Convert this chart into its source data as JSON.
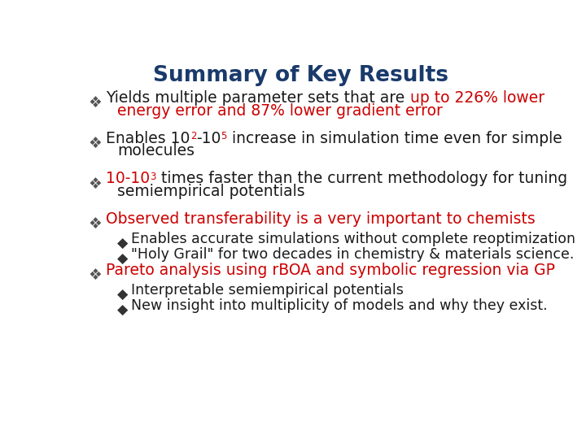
{
  "title": "Summary of Key Results",
  "title_color": "#1a3a6b",
  "title_fontsize": 19,
  "bg_color": "#ffffff",
  "bullet_color": "#555555",
  "highlight_color": "#cc0000",
  "normal_color": "#1a1a1a",
  "bullet_symbol": "❖",
  "sub_bullet_symbol": "◆",
  "bullet_fontsize": 13.5,
  "sub_bullet_fontsize": 12.5,
  "items": [
    {
      "type": "bullet",
      "lines": [
        [
          {
            "text": "Yields multiple parameter sets that are ",
            "color": "#1a1a1a",
            "super": false
          },
          {
            "text": "up to 226% lower",
            "color": "#cc0000",
            "super": false
          }
        ],
        [
          {
            "text": "energy error and 87% lower gradient error",
            "color": "#cc0000",
            "super": false
          }
        ]
      ]
    },
    {
      "type": "bullet",
      "lines": [
        [
          {
            "text": "Enables 10",
            "color": "#1a1a1a",
            "super": false
          },
          {
            "text": "2",
            "color": "#cc0000",
            "super": true
          },
          {
            "text": "-10",
            "color": "#1a1a1a",
            "super": false
          },
          {
            "text": "5",
            "color": "#cc0000",
            "super": true
          },
          {
            "text": " increase in simulation time even for simple",
            "color": "#1a1a1a",
            "super": false
          }
        ],
        [
          {
            "text": "molecules",
            "color": "#1a1a1a",
            "super": false
          }
        ]
      ]
    },
    {
      "type": "bullet",
      "lines": [
        [
          {
            "text": "10-10",
            "color": "#cc0000",
            "super": false
          },
          {
            "text": "3",
            "color": "#cc0000",
            "super": true
          },
          {
            "text": " times faster than the current methodology for tuning",
            "color": "#1a1a1a",
            "super": false
          }
        ],
        [
          {
            "text": "semiempirical potentials",
            "color": "#1a1a1a",
            "super": false
          }
        ]
      ]
    },
    {
      "type": "bullet",
      "lines": [
        [
          {
            "text": "Observed transferability is a very important to chemists",
            "color": "#cc0000",
            "super": false
          }
        ]
      ]
    },
    {
      "type": "sub_bullet",
      "lines": [
        [
          {
            "text": "Enables accurate simulations without complete reoptimization",
            "color": "#1a1a1a",
            "super": false
          }
        ]
      ]
    },
    {
      "type": "sub_bullet",
      "lines": [
        [
          {
            "text": "\"Holy Grail\" for two decades in chemistry & materials science.",
            "color": "#1a1a1a",
            "super": false
          }
        ]
      ]
    },
    {
      "type": "bullet",
      "lines": [
        [
          {
            "text": "Pareto analysis using rBOA and symbolic regression via GP",
            "color": "#cc0000",
            "super": false
          }
        ]
      ]
    },
    {
      "type": "sub_bullet",
      "lines": [
        [
          {
            "text": "Interpretable semiempirical potentials",
            "color": "#1a1a1a",
            "super": false
          }
        ]
      ]
    },
    {
      "type": "sub_bullet",
      "lines": [
        [
          {
            "text": "New insight into multiplicity of models and why they exist.",
            "color": "#1a1a1a",
            "super": false
          }
        ]
      ]
    }
  ]
}
